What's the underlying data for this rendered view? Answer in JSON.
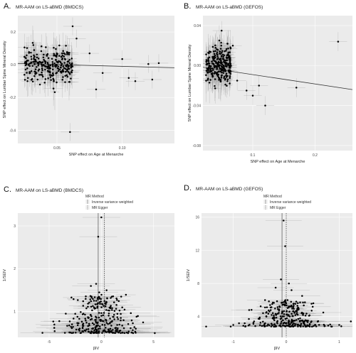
{
  "chart_data": [
    {
      "letter": "A.",
      "title": "MR-AAM on LS-aBMD (BMDCS)",
      "type": "scatter",
      "xlabel": "SNP effect on Age at Menarche",
      "ylabel": "SNP effect on Lumbar Spine Mineral Density",
      "xlim": [
        0.02,
        0.14
      ],
      "ylim": [
        -0.48,
        0.3
      ],
      "xticks": [
        "0.05",
        "0.10"
      ],
      "yticks": [
        "0.2",
        "0.0",
        "-0.2",
        "-0.4"
      ],
      "xtick_values": [
        0.05,
        0.1
      ],
      "ytick_values": [
        0.2,
        0.0,
        -0.2,
        -0.4
      ],
      "regression_line": {
        "x": [
          0.02,
          0.14
        ],
        "y": [
          0.008,
          -0.018
        ]
      },
      "highlight_points": [
        {
          "x": 0.062,
          "y": 0.235
        },
        {
          "x": 0.065,
          "y": 0.16
        },
        {
          "x": 0.06,
          "y": -0.41
        },
        {
          "x": 0.1,
          "y": 0.035
        },
        {
          "x": 0.105,
          "y": -0.08
        },
        {
          "x": 0.11,
          "y": -0.1
        },
        {
          "x": 0.123,
          "y": -0.09
        },
        {
          "x": 0.12,
          "y": 0.005
        },
        {
          "x": 0.128,
          "y": 0.01
        },
        {
          "x": 0.085,
          "y": -0.05
        },
        {
          "x": 0.075,
          "y": 0.07
        },
        {
          "x": 0.08,
          "y": -0.15
        }
      ],
      "cloud": {
        "n": 260,
        "x_range": [
          0.025,
          0.062
        ],
        "y_sd": 0.05
      }
    },
    {
      "letter": "B.",
      "title": "MR-AAM on LS-aBMD (GEFOS)",
      "type": "scatter",
      "xlabel": "SNP effect on Age at Menarche",
      "ylabel": "SNP effect on Lumbar Spine Mineral Density",
      "xlim": [
        0.02,
        0.26
      ],
      "ylim": [
        -0.085,
        0.05
      ],
      "xticks": [
        "0.1",
        "0.2"
      ],
      "yticks": [
        "0.04",
        "0.00",
        "-0.04",
        "-0.08"
      ],
      "xtick_values": [
        0.1,
        0.2
      ],
      "ytick_values": [
        0.04,
        0.0,
        -0.04,
        -0.08
      ],
      "regression_line": {
        "x": [
          0.02,
          0.26
        ],
        "y": [
          -0.0015,
          -0.024
        ]
      },
      "highlight_points": [
        {
          "x": 0.237,
          "y": 0.024
        },
        {
          "x": 0.05,
          "y": 0.035
        },
        {
          "x": 0.11,
          "y": -0.02
        },
        {
          "x": 0.09,
          "y": -0.025
        },
        {
          "x": 0.17,
          "y": -0.022
        },
        {
          "x": 0.075,
          "y": -0.015
        },
        {
          "x": 0.12,
          "y": -0.04
        },
        {
          "x": 0.068,
          "y": 0.02
        },
        {
          "x": 0.1,
          "y": -0.03
        }
      ],
      "cloud": {
        "n": 260,
        "x_range": [
          0.025,
          0.065
        ],
        "y_sd": 0.009
      }
    },
    {
      "letter": "C.",
      "title": "MR-AAM on LS-aBMD (BMDCS)",
      "type": "scatter",
      "xlabel": "βIV",
      "ylabel": "1/SEIV",
      "legend_title": "MR Method",
      "legend": [
        "Inverse variance weighted",
        "MR Egger"
      ],
      "xlim": [
        -8,
        7
      ],
      "ylim": [
        0.4,
        3.3
      ],
      "xticks": [
        "-5",
        "0",
        "5"
      ],
      "yticks": [
        "3",
        "2",
        "1"
      ],
      "xtick_values": [
        -5,
        0,
        5
      ],
      "ytick_values": [
        3,
        2,
        1
      ],
      "vlines": [
        -0.3,
        0.3
      ],
      "highlight_points": [
        {
          "x": 0.0,
          "y": 3.2
        },
        {
          "x": -0.3,
          "y": 2.75
        },
        {
          "x": -0.5,
          "y": 1.65
        },
        {
          "x": -1.0,
          "y": 1.6
        },
        {
          "x": 0.5,
          "y": 1.5
        },
        {
          "x": -0.2,
          "y": 1.45
        },
        {
          "x": 1.0,
          "y": 1.35
        },
        {
          "x": -1.5,
          "y": 1.3
        },
        {
          "x": 0.3,
          "y": 1.25
        },
        {
          "x": 2.0,
          "y": 1.1
        },
        {
          "x": -2.5,
          "y": 0.95
        },
        {
          "x": 3.5,
          "y": 0.9
        },
        {
          "x": 4.0,
          "y": 0.75
        },
        {
          "x": -4.5,
          "y": 0.7
        }
      ],
      "cloud": {
        "n": 280,
        "y_range": [
          0.5,
          1.4
        ]
      }
    },
    {
      "letter": "D.",
      "title": "MR-AAM on LS-aBMD (GEFOS)",
      "type": "scatter",
      "xlabel": "βIV",
      "ylabel": "1/SEIV",
      "legend_title": "MR Method",
      "legend": [
        "Inverse variance weighted",
        "MR Egger"
      ],
      "xlim": [
        -1.6,
        1.25
      ],
      "ylim": [
        1.5,
        16.5
      ],
      "xticks": [
        "-1",
        "0",
        "1"
      ],
      "yticks": [
        "16",
        "12",
        "8",
        "4"
      ],
      "xtick_values": [
        -1,
        0,
        1
      ],
      "ytick_values": [
        16,
        12,
        8,
        4
      ],
      "vlines": [
        -0.08,
        0.0
      ],
      "highlight_points": [
        {
          "x": -0.05,
          "y": 15.6
        },
        {
          "x": -0.02,
          "y": 12.5
        },
        {
          "x": -0.1,
          "y": 8.5
        },
        {
          "x": 0.05,
          "y": 8.0
        },
        {
          "x": -0.2,
          "y": 7.5
        },
        {
          "x": 0.1,
          "y": 7.2
        },
        {
          "x": 0.3,
          "y": 6.5
        },
        {
          "x": -0.4,
          "y": 6.0
        },
        {
          "x": 0.5,
          "y": 5.2
        },
        {
          "x": -0.7,
          "y": 4.8
        },
        {
          "x": 0.7,
          "y": 4.5
        },
        {
          "x": -1.0,
          "y": 3.0
        },
        {
          "x": 1.0,
          "y": 3.0
        }
      ],
      "cloud": {
        "n": 280,
        "y_range": [
          2.8,
          6.0
        ]
      }
    }
  ]
}
